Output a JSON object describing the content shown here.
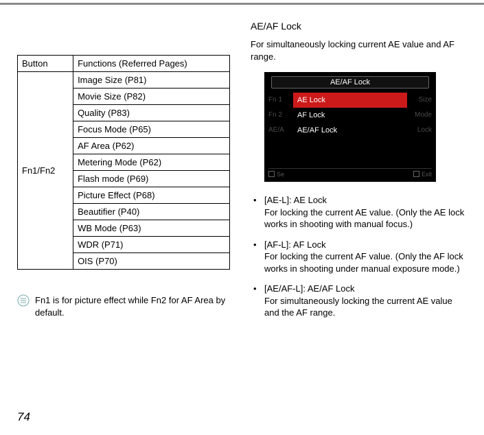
{
  "table": {
    "headers": [
      "Button",
      "Functions (Referred Pages)"
    ],
    "button_label": "Fn1/Fn2",
    "functions": [
      "Image Size (P81)",
      "Movie Size (P82)",
      "Quality (P83)",
      "Focus Mode (P65)",
      "AF Area (P62)",
      "Metering Mode (P62)",
      "Flash mode (P69)",
      "Picture Effect (P68)",
      "Beautifier (P40)",
      "WB Mode (P63)",
      "WDR (P71)",
      "OIS (P70)"
    ]
  },
  "note": "Fn1 is for picture effect while Fn2 for AF Area by default.",
  "right": {
    "title": "AE/AF Lock",
    "lead": "For simultaneously locking current AE value and AF range.",
    "lcd": {
      "title": "AE/AF Lock",
      "left_labels": [
        "Fn 1",
        "Fn 2",
        "AE/A"
      ],
      "right_labels": [
        "Size",
        "Mode",
        "Lock"
      ],
      "menu": [
        "AE Lock",
        "AF Lock",
        "AE/AF Lock"
      ],
      "selected_index": 0,
      "footer_left": "Se",
      "footer_right": "Exit"
    },
    "bullets": [
      "[AE-L]: AE Lock\nFor locking the current AE value. (Only the AE lock works in shooting with manual focus.)",
      "[AF-L]: AF Lock\nFor locking the current AF value. (Only the AF lock works in shooting under manual exposure mode.)",
      "[AE/AF-L]: AE/AF Lock\nFor simultaneously locking the current AE value and the AF range."
    ]
  },
  "page_number": "74"
}
